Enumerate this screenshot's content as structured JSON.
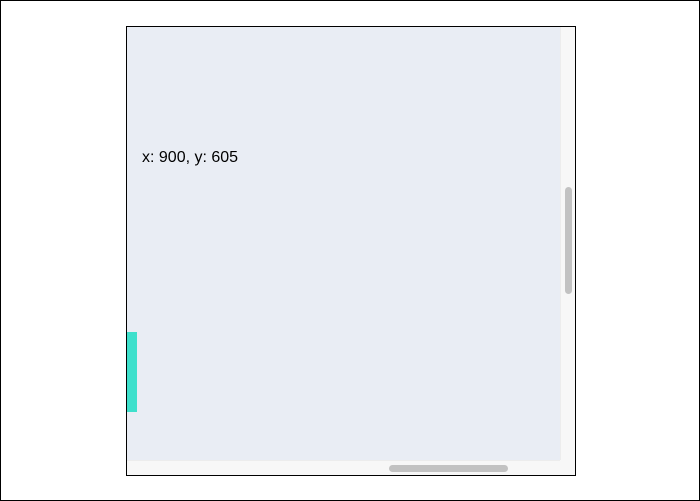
{
  "readout": {
    "text": "x: 900, y: 605"
  },
  "colors": {
    "canvas_background": "#e9edf4",
    "marker": "#3ee0cc",
    "scrollbar_thumb": "#c2c2c2",
    "scrollbar_track": "#f7f7f7"
  },
  "scroll": {
    "vertical_thumb": "scrollbar-thumb",
    "horizontal_thumb": "scrollbar-thumb"
  }
}
